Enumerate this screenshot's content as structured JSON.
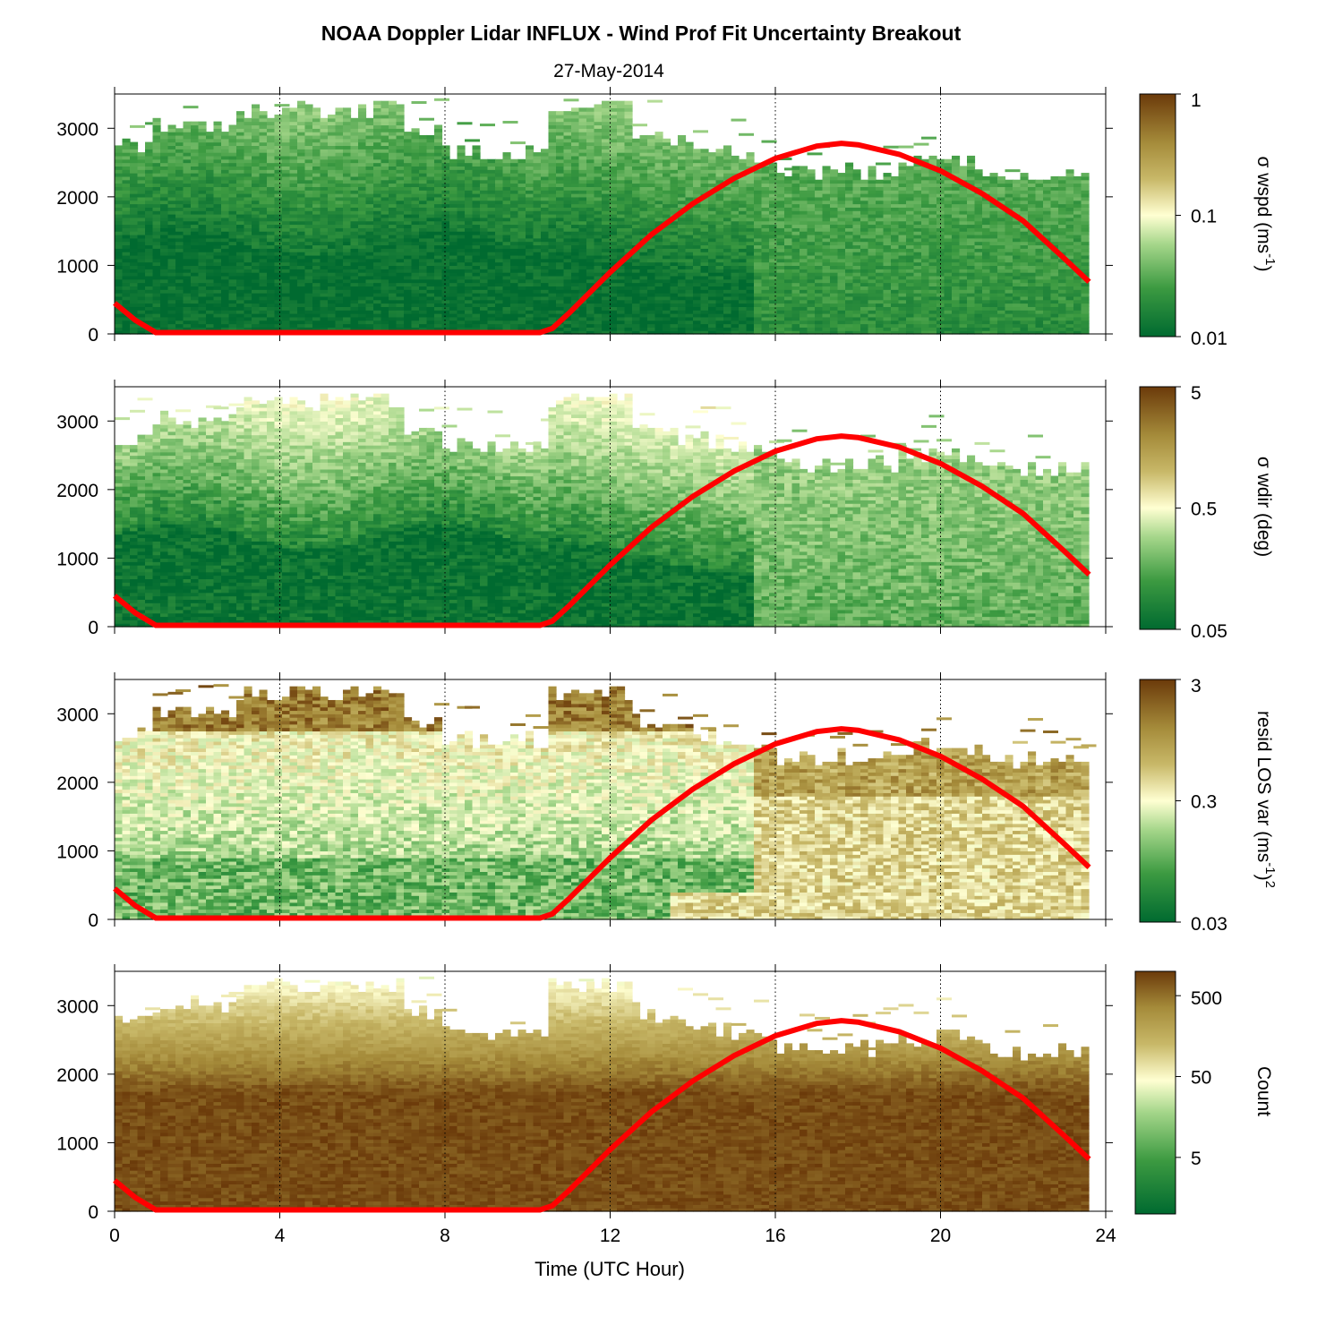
{
  "figure": {
    "title": "NOAA Doppler Lidar INFLUX - Wind Prof Fit Uncertainty Breakout",
    "subtitle": "27-May-2014",
    "xlabel": "Time (UTC Hour)"
  },
  "chart_data": [
    {
      "type": "heatmap",
      "panel": "wspd-uncertainty",
      "xlim": [
        0,
        24
      ],
      "ylim": [
        0,
        3500
      ],
      "yticks": [
        "0",
        "1000",
        "2000",
        "3000"
      ],
      "xticks": [
        "0",
        "4",
        "8",
        "12",
        "16",
        "20",
        "24"
      ],
      "xlabel": "Time (UTC Hour)",
      "colorbar": {
        "label_main": "σ wspd (ms",
        "label_sup": "-1",
        "label_tail": ")",
        "scale": "log",
        "range": [
          0.01,
          1
        ],
        "ticks": [
          "1",
          "0.1",
          "0.01"
        ],
        "tick_values": [
          1,
          0.1,
          0.01
        ]
      },
      "overlay_series": {
        "name": "",
        "color": "#ff0000"
      },
      "grid": "dotted vertical at 4, 8, 12, 16, 20"
    },
    {
      "type": "heatmap",
      "panel": "wdir-uncertainty",
      "xlim": [
        0,
        24
      ],
      "ylim": [
        0,
        3500
      ],
      "yticks": [
        "0",
        "1000",
        "2000",
        "3000"
      ],
      "colorbar": {
        "label_main": "σ wdir (deg)",
        "label_sup": "",
        "label_tail": "",
        "scale": "log",
        "range": [
          0.05,
          5
        ],
        "ticks": [
          "5",
          "0.5",
          "0.05"
        ],
        "tick_values": [
          5,
          0.5,
          0.05
        ]
      },
      "overlay_series": {
        "name": "",
        "color": "#ff0000"
      },
      "grid": "dotted vertical at 4, 8, 12, 16, 20"
    },
    {
      "type": "heatmap",
      "panel": "residual-los-variance",
      "xlim": [
        0,
        24
      ],
      "ylim": [
        0,
        3500
      ],
      "yticks": [
        "0",
        "1000",
        "2000",
        "3000"
      ],
      "colorbar": {
        "label_main": "resid LOS var (ms",
        "label_sup": "-1",
        "label_tail": ")",
        "label_sup2": "2",
        "scale": "log",
        "range": [
          0.03,
          3
        ],
        "ticks": [
          "3",
          "0.3",
          "0.03"
        ],
        "tick_values": [
          3,
          0.3,
          0.03
        ]
      },
      "overlay_series": {
        "name": "",
        "color": "#ff0000"
      },
      "grid": "dotted vertical at 4, 8, 12, 16, 20"
    },
    {
      "type": "heatmap",
      "panel": "count",
      "xlim": [
        0,
        24
      ],
      "ylim": [
        0,
        3500
      ],
      "yticks": [
        "0",
        "1000",
        "2000",
        "3000"
      ],
      "colorbar": {
        "label_main": "Count",
        "label_sup": "",
        "label_tail": "",
        "scale": "log",
        "range": [
          1,
          1000
        ],
        "ticks": [
          "500",
          "50",
          "5"
        ],
        "tick_values": [
          500,
          50,
          5
        ]
      },
      "overlay_series": {
        "name": "",
        "color": "#ff0000"
      },
      "grid": "dotted vertical at 4, 8, 12, 16, 20"
    }
  ],
  "overlay_curve": {
    "color": "#ff0000",
    "x": [
      0,
      0.5,
      1.0,
      2,
      4,
      6,
      8,
      10,
      10.3,
      10.6,
      11,
      12,
      13,
      14,
      15,
      16,
      17,
      17.6,
      18,
      19,
      20,
      21,
      22,
      23,
      23.6
    ],
    "y": [
      450,
      200,
      20,
      20,
      20,
      20,
      20,
      20,
      20,
      80,
      300,
      900,
      1450,
      1900,
      2270,
      2560,
      2740,
      2780,
      2760,
      2620,
      2380,
      2050,
      1650,
      1100,
      760
    ]
  },
  "colors": {
    "dark_green": "#006a30",
    "mid_green": "#3c9a41",
    "light_green": "#a5d68a",
    "pale": "#ffffd2",
    "tan": "#c8b868",
    "olive": "#a58b3a",
    "brown": "#6b3a0a",
    "curve": "#ff0000"
  }
}
